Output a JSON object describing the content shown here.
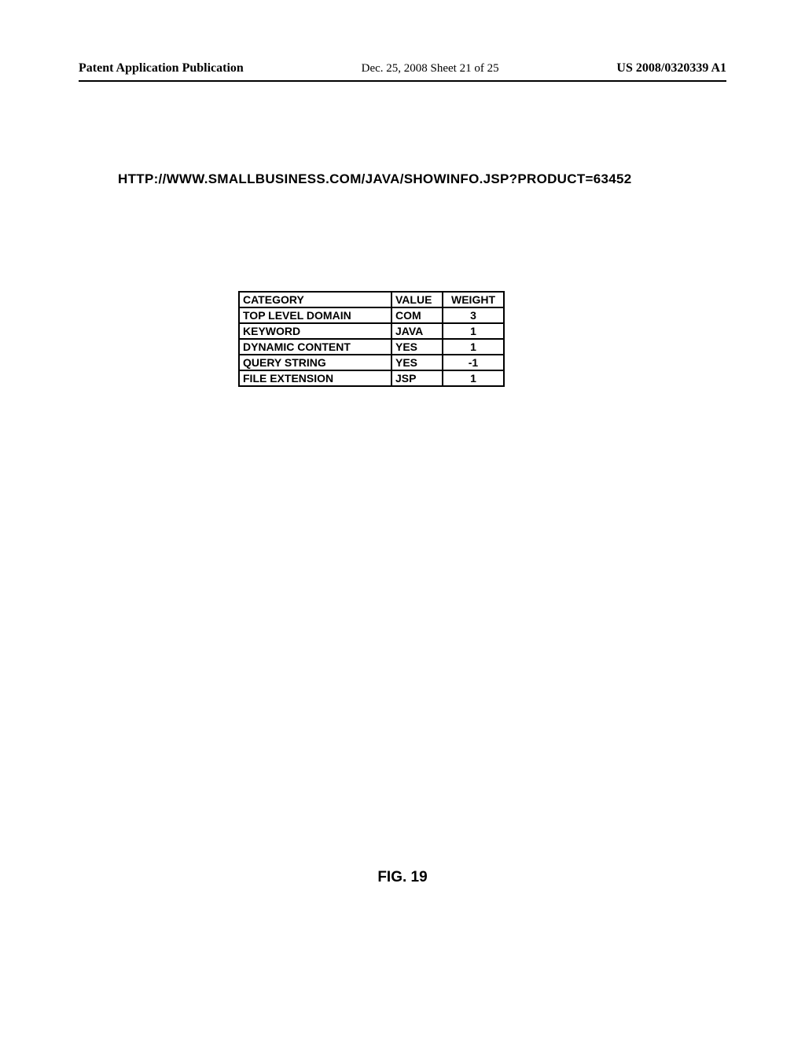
{
  "header": {
    "publication_label": "Patent Application Publication",
    "date_and_sheet": "Dec. 25, 2008  Sheet 21 of 25",
    "publication_number": "US 2008/0320339 A1"
  },
  "url": "HTTP://WWW.SMALLBUSINESS.COM/JAVA/SHOWINFO.JSP?PRODUCT=63452",
  "table": {
    "columns": [
      "CATEGORY",
      "VALUE",
      "WEIGHT"
    ],
    "rows": [
      {
        "category": "TOP LEVEL DOMAIN",
        "value": "COM",
        "weight": "3"
      },
      {
        "category": "KEYWORD",
        "value": "JAVA",
        "weight": "1"
      },
      {
        "category": "DYNAMIC CONTENT",
        "value": "YES",
        "weight": "1"
      },
      {
        "category": "QUERY STRING",
        "value": "YES",
        "weight": "-1"
      },
      {
        "category": "FILE EXTENSION",
        "value": "JSP",
        "weight": "1"
      }
    ]
  },
  "figure_label": "FIG. 19"
}
